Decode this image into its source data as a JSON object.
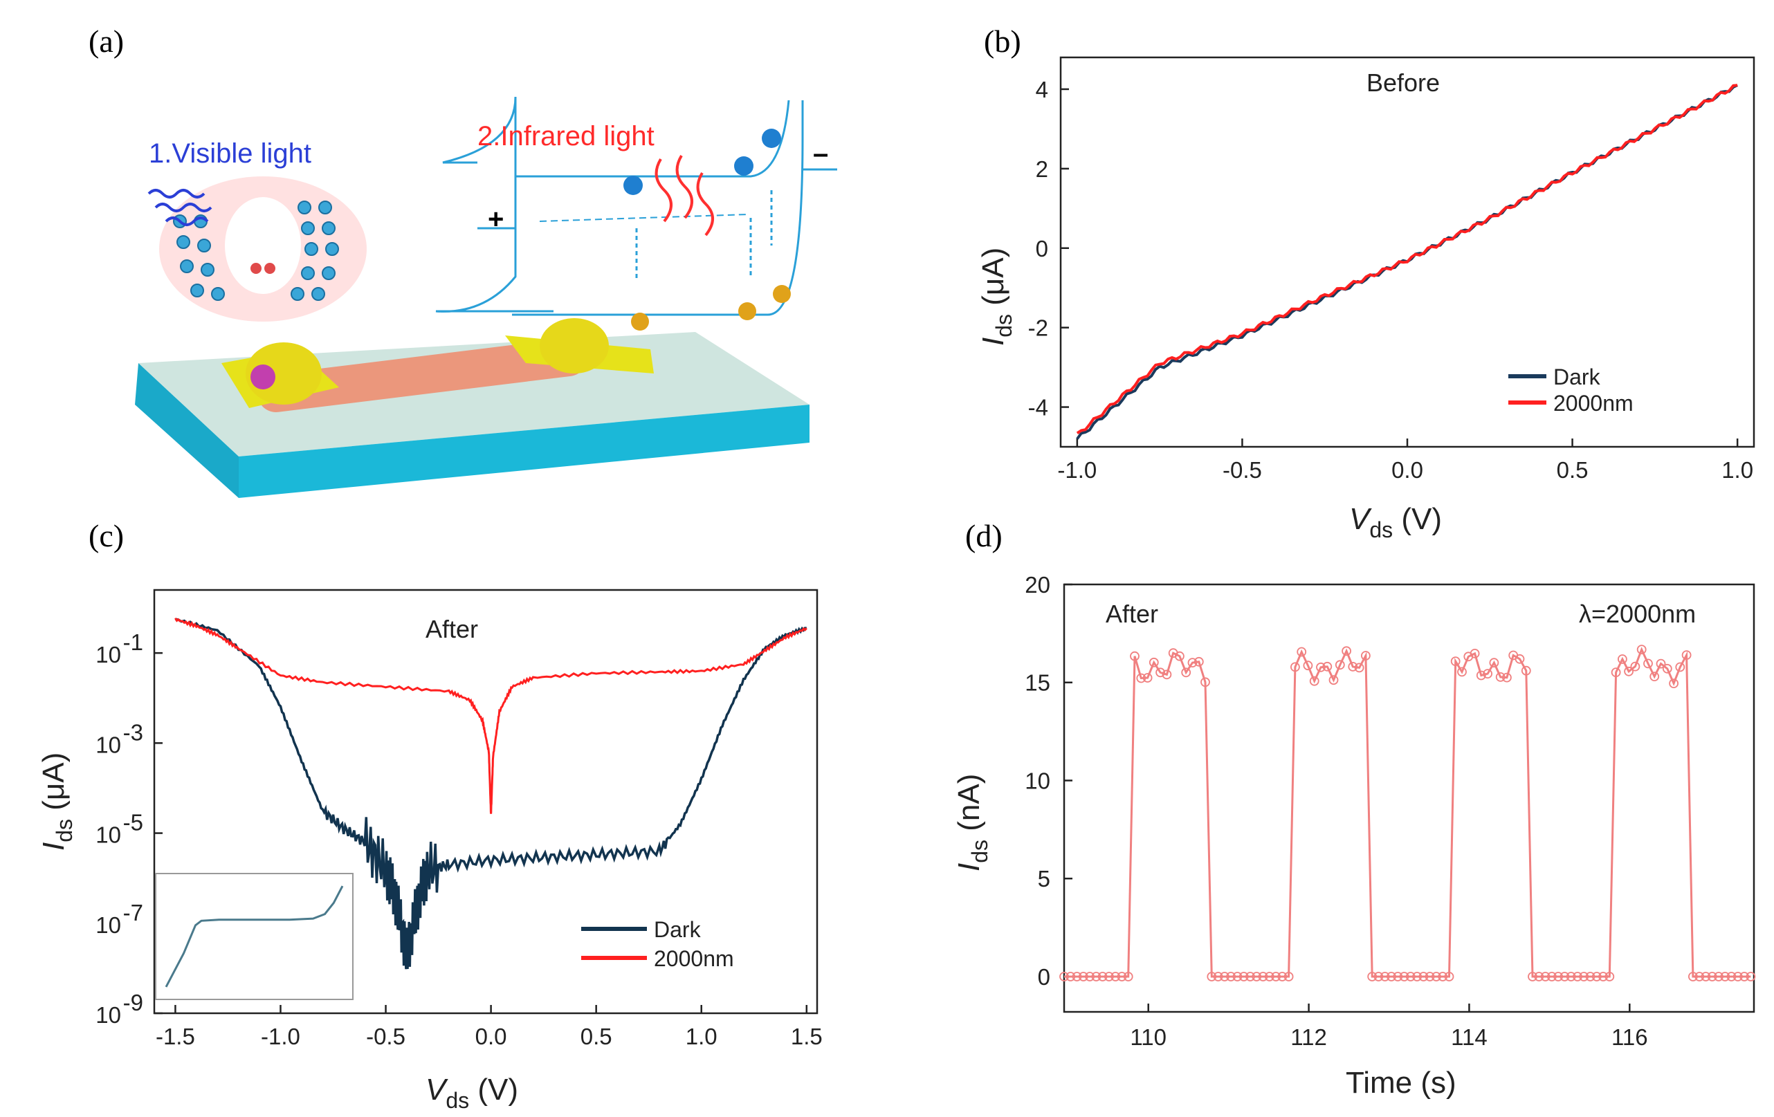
{
  "panels": {
    "a": {
      "label": "(a)",
      "visible_light": "1.Visible light",
      "infrared_light": "2.Infrared light",
      "plus": "+",
      "minus": "–"
    },
    "b": {
      "label": "(b)"
    },
    "c": {
      "label": "(c)"
    },
    "d": {
      "label": "(d)"
    }
  },
  "chart_data": [
    {
      "id": "b",
      "type": "line",
      "title": "Before",
      "xlabel": "V_ds (V)",
      "ylabel": "I_ds (μA)",
      "xlim": [
        -1.05,
        1.05
      ],
      "ylim": [
        -5,
        4.8
      ],
      "xticks": [
        -1.0,
        -0.5,
        0.0,
        0.5,
        1.0
      ],
      "xtick_labels": [
        "-1.0",
        "-0.5",
        "0.0",
        "0.5",
        "1.0"
      ],
      "yticks": [
        -4,
        -2,
        0,
        2,
        4
      ],
      "ytick_labels": [
        "-4",
        "-2",
        "0",
        "2",
        "4"
      ],
      "series": [
        {
          "name": "Dark",
          "color": "#1a3a5c",
          "x": [
            -1.0,
            -0.75,
            -0.5,
            -0.25,
            0.0,
            0.25,
            0.5,
            0.75,
            1.0
          ],
          "y": [
            -4.8,
            -3.0,
            -2.2,
            -1.25,
            -0.3,
            0.75,
            1.9,
            3.0,
            4.1
          ]
        },
        {
          "name": "2000nm",
          "color": "#ff2020",
          "x": [
            -1.0,
            -0.75,
            -0.5,
            -0.25,
            0.0,
            0.25,
            0.5,
            0.75,
            1.0
          ],
          "y": [
            -4.7,
            -2.9,
            -2.15,
            -1.2,
            -0.3,
            0.75,
            1.9,
            3.0,
            4.1
          ]
        }
      ]
    },
    {
      "id": "c",
      "type": "line",
      "title": "After",
      "xlabel": "V_ds (V)",
      "ylabel": "I_ds (μA)",
      "yscale": "log",
      "xlim": [
        -1.6,
        1.55
      ],
      "ylim_log10": [
        -9,
        0.4
      ],
      "xticks": [
        -1.5,
        -1.0,
        -0.5,
        0.0,
        0.5,
        1.0,
        1.5
      ],
      "xtick_labels": [
        "-1.5",
        "-1.0",
        "-0.5",
        "0.0",
        "0.5",
        "1.0",
        "1.5"
      ],
      "yticks_log10": [
        -9,
        -7,
        -5,
        -3,
        -1
      ],
      "ytick_labels": [
        "10",
        "10",
        "10",
        "10",
        "10"
      ],
      "ytick_exponents": [
        "-9",
        "-7",
        "-5",
        "-3",
        "-1"
      ],
      "series": [
        {
          "name": "Dark",
          "color": "#12344f",
          "x": [
            -1.5,
            -1.3,
            -1.1,
            -1.0,
            -0.9,
            -0.8,
            -0.7,
            -0.6,
            -0.5,
            -0.45,
            -0.4,
            -0.35,
            -0.3,
            -0.2,
            0.0,
            0.2,
            0.4,
            0.6,
            0.8,
            0.9,
            1.0,
            1.1,
            1.2,
            1.3,
            1.4,
            1.5
          ],
          "log10y": [
            -0.25,
            -0.5,
            -1.3,
            -2.2,
            -3.4,
            -4.5,
            -4.9,
            -5.2,
            -5.8,
            -6.5,
            -7.7,
            -6.6,
            -5.8,
            -5.7,
            -5.6,
            -5.55,
            -5.5,
            -5.45,
            -5.4,
            -4.8,
            -3.8,
            -2.6,
            -1.6,
            -0.9,
            -0.6,
            -0.45
          ]
        },
        {
          "name": "2000nm",
          "color": "#ff2020",
          "x": [
            -1.5,
            -1.4,
            -1.3,
            -1.2,
            -1.0,
            -0.8,
            -0.5,
            -0.2,
            -0.1,
            -0.04,
            -0.01,
            0.0,
            0.01,
            0.04,
            0.1,
            0.2,
            0.5,
            0.8,
            1.0,
            1.2,
            1.3,
            1.4,
            1.5
          ],
          "log10y": [
            -0.25,
            -0.4,
            -0.6,
            -0.9,
            -1.5,
            -1.65,
            -1.75,
            -1.85,
            -2.05,
            -2.5,
            -3.2,
            -4.6,
            -3.3,
            -2.3,
            -1.75,
            -1.55,
            -1.45,
            -1.42,
            -1.4,
            -1.25,
            -0.95,
            -0.65,
            -0.45
          ]
        }
      ],
      "legend": [
        "Dark",
        "2000nm"
      ],
      "inset": {
        "x": [
          -1.5,
          -1.2,
          -1.0,
          -0.9,
          -0.6,
          0.0,
          0.6,
          1.0,
          1.2,
          1.35,
          1.5
        ],
        "y": [
          0.05,
          0.35,
          0.6,
          0.64,
          0.65,
          0.65,
          0.65,
          0.66,
          0.7,
          0.8,
          0.95
        ]
      }
    },
    {
      "id": "d",
      "type": "line",
      "title": "After",
      "annotation": "λ=2000nm",
      "xlabel": "Time (s)",
      "ylabel": "I_ds (nA)",
      "xlim": [
        108.95,
        117.55
      ],
      "ylim": [
        -1.8,
        20
      ],
      "xticks": [
        110,
        112,
        114,
        116
      ],
      "xtick_labels": [
        "110",
        "112",
        "114",
        "116"
      ],
      "yticks": [
        0,
        5,
        10,
        15,
        20
      ],
      "ytick_labels": [
        "0",
        "5",
        "10",
        "15",
        "20"
      ],
      "series": [
        {
          "name": "2000nm",
          "color": "#f08080",
          "pulses": [
            [
              109.75,
              110.75
            ],
            [
              111.75,
              112.75
            ],
            [
              113.75,
              114.75
            ],
            [
              115.75,
              116.75
            ]
          ],
          "on_level": 15.8,
          "off_level": 0
        }
      ]
    }
  ]
}
